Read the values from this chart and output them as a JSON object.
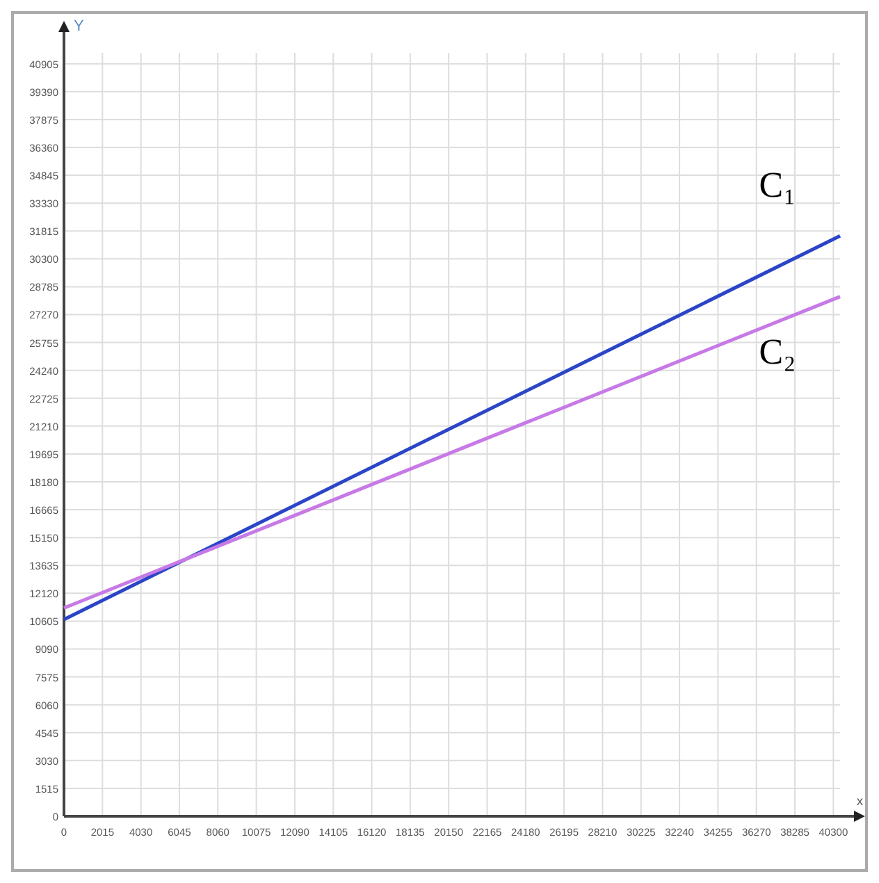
{
  "chart_data": {
    "type": "line",
    "xlabel": "x",
    "ylabel": "Y",
    "x": [
      0,
      40650
    ],
    "series": [
      {
        "name": "C₁",
        "color": "#2b45c8",
        "values": [
          10700,
          31550
        ]
      },
      {
        "name": "C₂",
        "color": "#c77ae6",
        "values": [
          11320,
          28250
        ]
      }
    ],
    "xlim": [
      0,
      40650
    ],
    "ylim": [
      0,
      41500
    ],
    "xticks": [
      0,
      2015,
      4030,
      6045,
      8060,
      10075,
      12090,
      14105,
      16120,
      18135,
      20150,
      22165,
      24180,
      26195,
      28210,
      30225,
      32240,
      34255,
      36270,
      38285,
      40300
    ],
    "yticks": [
      0,
      1515,
      3030,
      4545,
      6060,
      7575,
      9090,
      10605,
      12120,
      13635,
      15150,
      16665,
      18180,
      19695,
      21210,
      22725,
      24240,
      25755,
      27270,
      28785,
      30300,
      31815,
      33330,
      34845,
      36360,
      37875,
      39390,
      40905
    ],
    "grid": true,
    "legend": false,
    "marker": "none",
    "line_style": "solid"
  }
}
